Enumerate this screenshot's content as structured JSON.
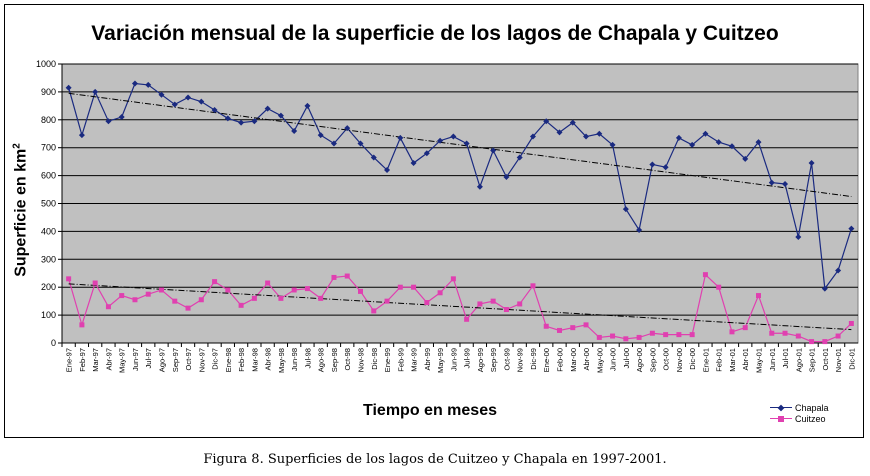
{
  "chart_data": {
    "type": "line",
    "title": "Variación mensual de la superficie de los lagos de Chapala y Cuitzeo",
    "xlabel": "Tiempo en meses",
    "ylabel": "Superficie en km",
    "ylabel_sup": "2",
    "ylim": [
      0,
      1000
    ],
    "yticks": [
      "0",
      "100",
      "200",
      "300",
      "400",
      "500",
      "600",
      "700",
      "800",
      "900",
      "1000"
    ],
    "grid": true,
    "legend_position": "bottom-right",
    "categories": [
      "Ene-97",
      "Feb-97",
      "Mar-97",
      "Abr-97",
      "May-97",
      "Jun-97",
      "Jul-97",
      "Ago-97",
      "Sep-97",
      "Oct-97",
      "Nov-97",
      "Dic-97",
      "Ene-98",
      "Feb-98",
      "Mar-98",
      "Abr-98",
      "May-98",
      "Jun-98",
      "Jul-98",
      "Ago-98",
      "Sep-98",
      "Oct-98",
      "Nov-98",
      "Dic-98",
      "Ene-99",
      "Feb-99",
      "Mar-99",
      "Abr-99",
      "May-99",
      "Jun-99",
      "Jul-99",
      "Ago-99",
      "Sep-99",
      "Oct-99",
      "Nov-99",
      "Dic-99",
      "Ene-00",
      "Feb-00",
      "Mar-00",
      "Abr-00",
      "May-00",
      "Jun-00",
      "Jul-00",
      "Ago-00",
      "Sep-00",
      "Oct-00",
      "Nov-00",
      "Dic-00",
      "Ene-01",
      "Feb-01",
      "Mar-01",
      "Abr-01",
      "May-01",
      "Jun-01",
      "Jul-01",
      "Ago-01",
      "Sep-01",
      "Oct-01",
      "Nov-01",
      "Dic-01"
    ],
    "series": [
      {
        "name": "Chapala",
        "color": "#1a2a80",
        "marker": "diamond",
        "values": [
          915,
          745,
          900,
          795,
          810,
          930,
          925,
          890,
          855,
          880,
          865,
          835,
          805,
          790,
          795,
          840,
          815,
          760,
          850,
          745,
          715,
          770,
          715,
          665,
          620,
          735,
          645,
          680,
          725,
          740,
          715,
          560,
          690,
          595,
          665,
          740,
          795,
          755,
          790,
          740,
          750,
          710,
          480,
          405,
          640,
          630,
          735,
          710,
          750,
          720,
          705,
          660,
          720,
          575,
          570,
          380,
          645,
          195,
          260,
          410
        ],
        "trend": [
          895,
          525
        ]
      },
      {
        "name": "Cuitzeo",
        "color": "#e040b0",
        "marker": "square",
        "values": [
          230,
          65,
          215,
          130,
          170,
          155,
          175,
          190,
          150,
          125,
          155,
          220,
          190,
          135,
          160,
          215,
          160,
          190,
          195,
          160,
          235,
          240,
          185,
          115,
          150,
          200,
          200,
          145,
          180,
          230,
          85,
          140,
          150,
          120,
          140,
          205,
          60,
          45,
          55,
          65,
          20,
          25,
          15,
          20,
          35,
          30,
          30,
          30,
          245,
          200,
          40,
          55,
          170,
          35,
          35,
          25,
          5,
          5,
          25,
          70
        ],
        "trend": [
          212,
          48
        ]
      }
    ]
  },
  "caption": "Figura 8. Superficies de los lagos de Cuitzeo y Chapala en 1997-2001."
}
